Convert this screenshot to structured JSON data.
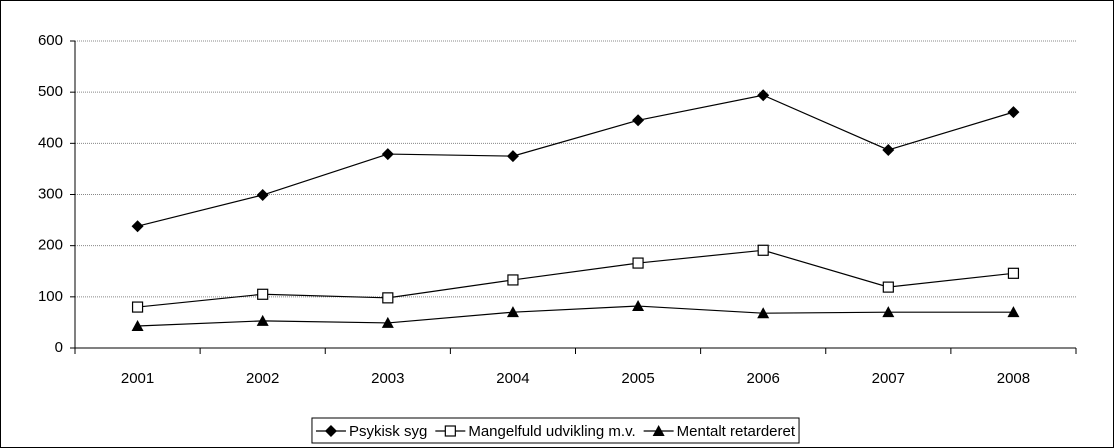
{
  "chart_data": {
    "type": "line",
    "categories": [
      "2001",
      "2002",
      "2003",
      "2004",
      "2005",
      "2006",
      "2007",
      "2008"
    ],
    "series": [
      {
        "name": "Psykisk syg",
        "color": "#000000",
        "marker": "diamond",
        "values": [
          238,
          299,
          379,
          375,
          445,
          494,
          387,
          461
        ]
      },
      {
        "name": "Mangelfuld udvikling m.v.",
        "color": "#000000",
        "marker": "square",
        "values": [
          80,
          105,
          98,
          133,
          166,
          191,
          119,
          146
        ]
      },
      {
        "name": "Mentalt retarderet",
        "color": "#000000",
        "marker": "triangle",
        "values": [
          43,
          53,
          49,
          70,
          82,
          68,
          70,
          70
        ]
      }
    ],
    "ylim": [
      0,
      600
    ],
    "yticks": [
      0,
      100,
      200,
      300,
      400,
      500,
      600
    ],
    "grid": true,
    "legend": "bottom"
  }
}
